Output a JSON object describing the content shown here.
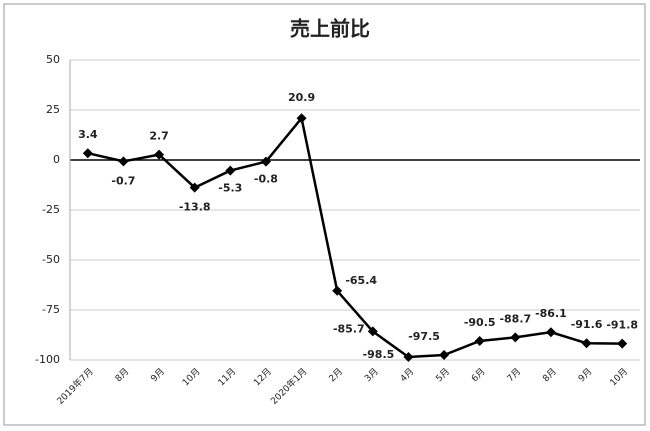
{
  "chart_data": {
    "type": "line",
    "title": "売上前比",
    "categories": [
      "2019年7月",
      "8月",
      "9月",
      "10月",
      "11月",
      "12月",
      "2020年1月",
      "2月",
      "3月",
      "4月",
      "5月",
      "6月",
      "7月",
      "8月",
      "9月",
      "10月"
    ],
    "values": [
      3.4,
      -0.7,
      2.7,
      -13.8,
      -5.3,
      -0.8,
      20.9,
      -65.4,
      -85.7,
      -98.5,
      -97.5,
      -90.5,
      -88.7,
      -86.1,
      -91.6,
      -91.8
    ],
    "color": "#000000",
    "ylim": [
      -100,
      50
    ],
    "yticks": [
      -100,
      -75,
      -50,
      -25,
      0,
      25,
      50
    ],
    "grid": true
  }
}
